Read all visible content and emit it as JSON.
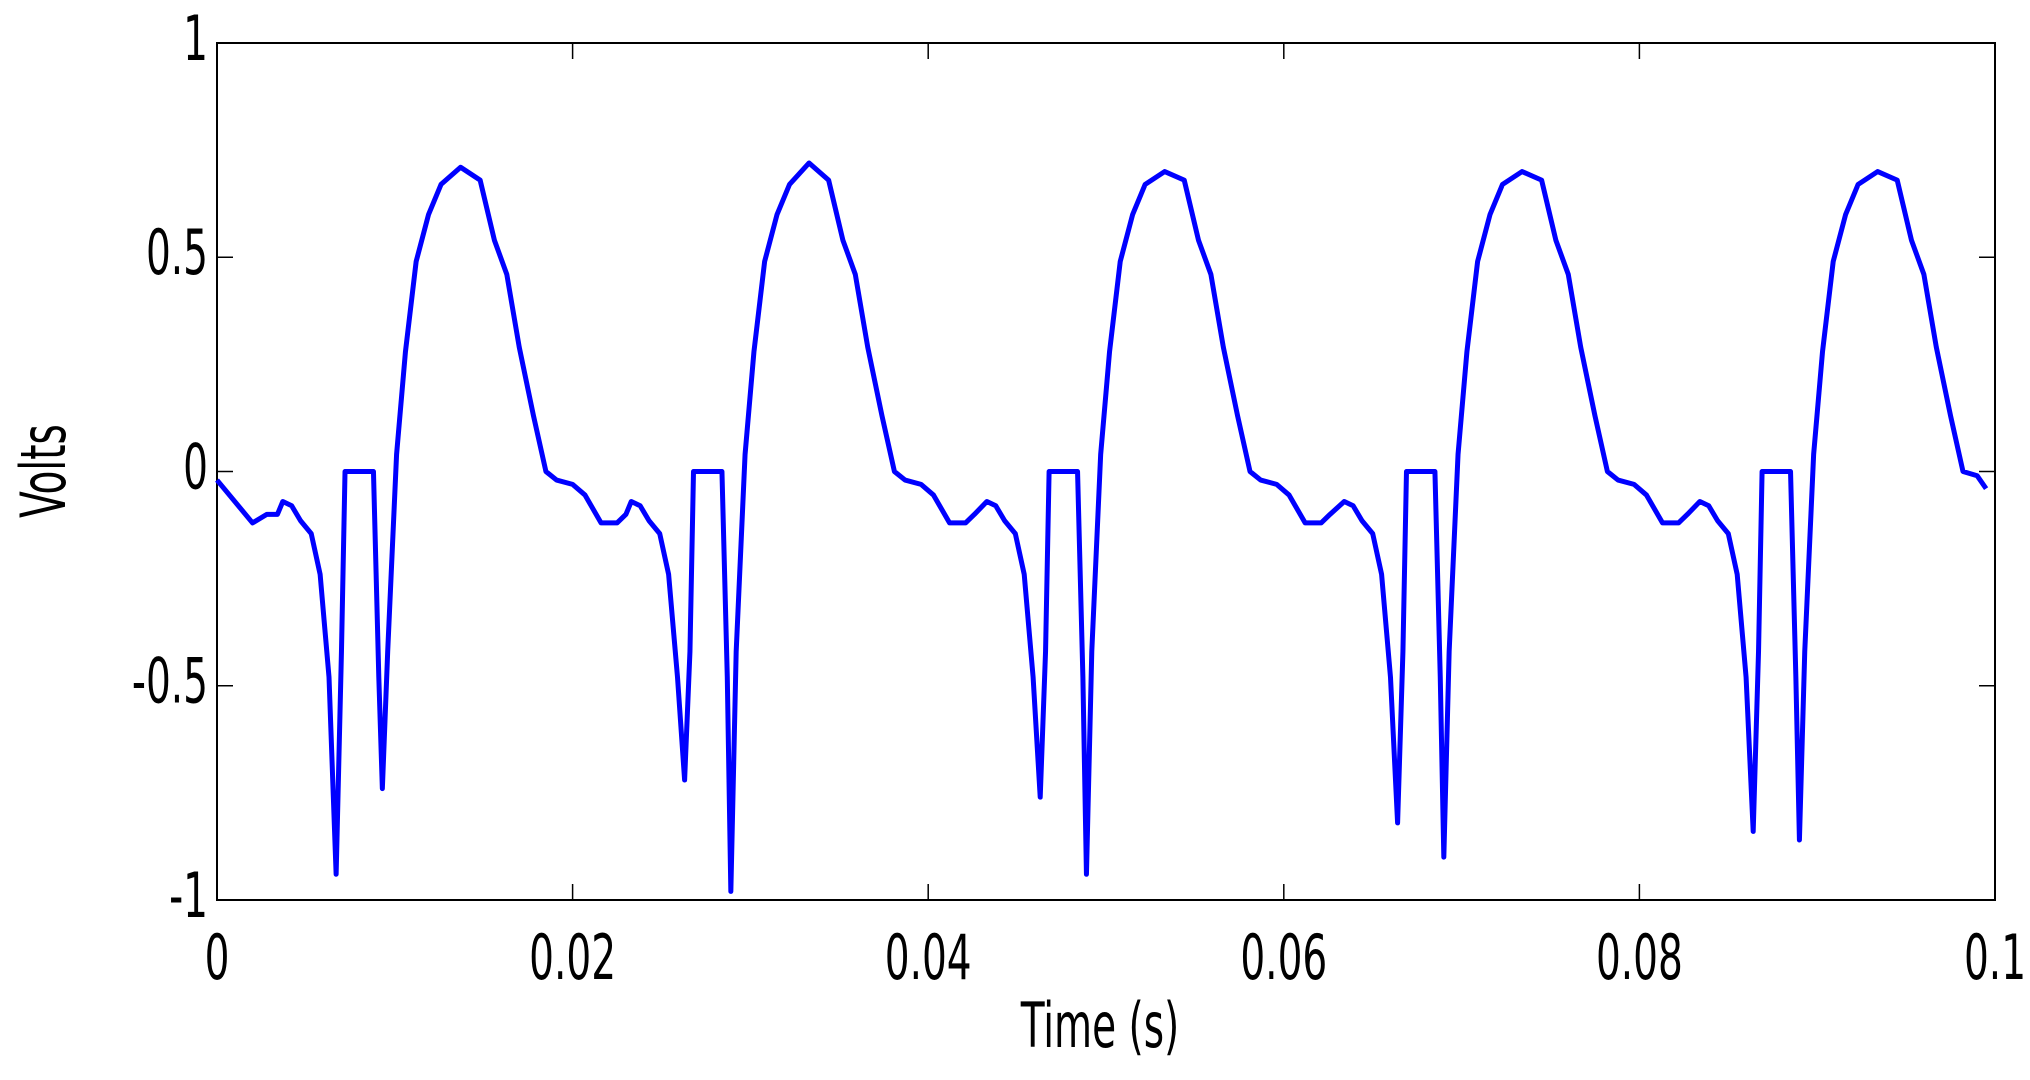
{
  "chart_data": {
    "type": "line",
    "xlabel": "Time (s)",
    "ylabel": "Volts",
    "xlim": [
      0,
      0.1
    ],
    "ylim": [
      -1,
      1
    ],
    "xticks": [
      0,
      0.02,
      0.04,
      0.06,
      0.08,
      0.1
    ],
    "yticks": [
      -1,
      -0.5,
      0,
      0.5,
      1
    ],
    "grid": false,
    "series": [
      {
        "color": "#0000ff",
        "x": [
          0,
          0.002,
          0.0028,
          0.0034,
          0.0037,
          0.0042,
          0.0047,
          0.0053,
          0.0058,
          0.0063,
          0.0067,
          0.007,
          0.0072,
          0.0088,
          0.0091,
          0.0093,
          0.0096,
          0.0101,
          0.0106,
          0.0112,
          0.0119,
          0.0126,
          0.0137,
          0.0148,
          0.0156,
          0.0163,
          0.017,
          0.0178,
          0.0185,
          0.0191,
          0.02,
          0.0207,
          0.0216,
          0.0225,
          0.023,
          0.0233,
          0.0238,
          0.0243,
          0.0249,
          0.0254,
          0.0259,
          0.0263,
          0.0266,
          0.0268,
          0.0284,
          0.0287,
          0.0289,
          0.0292,
          0.0297,
          0.0302,
          0.0308,
          0.0315,
          0.0322,
          0.0333,
          0.0344,
          0.0352,
          0.0359,
          0.0366,
          0.0374,
          0.0381,
          0.0387,
          0.0396,
          0.0403,
          0.0412,
          0.0421,
          0.0426,
          0.0433,
          0.0438,
          0.0443,
          0.0449,
          0.0454,
          0.0459,
          0.0463,
          0.0466,
          0.0468,
          0.0484,
          0.0487,
          0.0489,
          0.0492,
          0.0497,
          0.0502,
          0.0508,
          0.0515,
          0.0522,
          0.0533,
          0.0544,
          0.0552,
          0.0559,
          0.0566,
          0.0574,
          0.0581,
          0.0587,
          0.0596,
          0.0603,
          0.0612,
          0.0621,
          0.0626,
          0.0634,
          0.0639,
          0.0644,
          0.065,
          0.0655,
          0.066,
          0.0664,
          0.0667,
          0.0669,
          0.0685,
          0.0688,
          0.069,
          0.0693,
          0.0698,
          0.0703,
          0.0709,
          0.0716,
          0.0723,
          0.0734,
          0.0745,
          0.0753,
          0.076,
          0.0767,
          0.0775,
          0.0782,
          0.0788,
          0.0797,
          0.0804,
          0.0813,
          0.0822,
          0.0827,
          0.0834,
          0.0839,
          0.0844,
          0.085,
          0.0855,
          0.086,
          0.0864,
          0.0867,
          0.0869,
          0.0885,
          0.0888,
          0.089,
          0.0893,
          0.0898,
          0.0903,
          0.0909,
          0.0916,
          0.0923,
          0.0934,
          0.0945,
          0.0953,
          0.096,
          0.0967,
          0.0975,
          0.0982,
          0.099,
          0.0995
        ],
        "values": [
          -0.02,
          -0.12,
          -0.1,
          -0.1,
          -0.07,
          -0.08,
          -0.115,
          -0.145,
          -0.24,
          -0.48,
          -0.94,
          -0.42,
          0,
          0,
          -0.48,
          -0.74,
          -0.42,
          0.04,
          0.28,
          0.49,
          0.6,
          0.67,
          0.71,
          0.68,
          0.54,
          0.46,
          0.29,
          0.13,
          0,
          -0.02,
          -0.03,
          -0.055,
          -0.12,
          -0.12,
          -0.1,
          -0.07,
          -0.08,
          -0.115,
          -0.145,
          -0.24,
          -0.48,
          -0.72,
          -0.42,
          0,
          0,
          -0.48,
          -0.98,
          -0.42,
          0.04,
          0.28,
          0.49,
          0.6,
          0.67,
          0.72,
          0.68,
          0.54,
          0.46,
          0.29,
          0.13,
          0,
          -0.02,
          -0.03,
          -0.055,
          -0.12,
          -0.12,
          -0.1,
          -0.07,
          -0.08,
          -0.115,
          -0.145,
          -0.24,
          -0.48,
          -0.76,
          -0.42,
          0,
          0,
          -0.48,
          -0.94,
          -0.42,
          0.04,
          0.28,
          0.49,
          0.6,
          0.67,
          0.7,
          0.68,
          0.54,
          0.46,
          0.29,
          0.13,
          0,
          -0.02,
          -0.03,
          -0.055,
          -0.12,
          -0.12,
          -0.1,
          -0.07,
          -0.08,
          -0.115,
          -0.145,
          -0.24,
          -0.48,
          -0.82,
          -0.42,
          0,
          0,
          -0.48,
          -0.9,
          -0.42,
          0.04,
          0.28,
          0.49,
          0.6,
          0.67,
          0.7,
          0.68,
          0.54,
          0.46,
          0.29,
          0.13,
          0,
          -0.02,
          -0.03,
          -0.055,
          -0.12,
          -0.12,
          -0.1,
          -0.07,
          -0.08,
          -0.115,
          -0.145,
          -0.24,
          -0.48,
          -0.84,
          -0.42,
          0,
          0,
          -0.48,
          -0.86,
          -0.42,
          0.04,
          0.28,
          0.49,
          0.6,
          0.67,
          0.7,
          0.68,
          0.54,
          0.46,
          0.29,
          0.13,
          0,
          -0.01,
          -0.04
        ]
      }
    ]
  }
}
